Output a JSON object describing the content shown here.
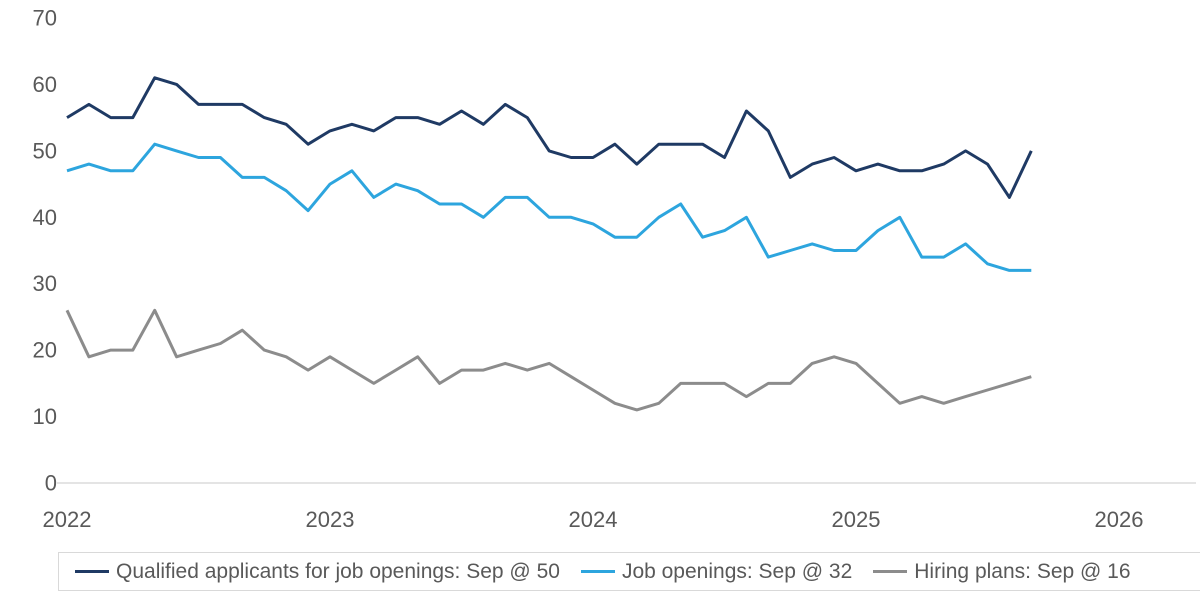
{
  "chart_data": {
    "type": "line",
    "title": "",
    "xlabel": "",
    "ylabel": "",
    "x_unit": "monthly",
    "x_range_note": "Jan 2022 through Sep 2025",
    "x_tick_labels": [
      "2022",
      "2023",
      "2024",
      "2025",
      "2026"
    ],
    "ylim": [
      0,
      70
    ],
    "y_ticks": [
      0,
      10,
      20,
      30,
      40,
      50,
      60,
      70
    ],
    "grid": "baseline only",
    "legend_position": "bottom",
    "series": [
      {
        "name": "Qualified applicants for job openings: Sep @ 50",
        "color": "#1f3a64",
        "last_point": {
          "month": "Sep",
          "value": 50
        },
        "values": [
          55,
          57,
          55,
          55,
          61,
          60,
          57,
          57,
          57,
          55,
          54,
          51,
          53,
          54,
          53,
          55,
          55,
          54,
          56,
          54,
          57,
          55,
          50,
          49,
          49,
          51,
          48,
          51,
          51,
          51,
          49,
          56,
          53,
          46,
          48,
          49,
          47,
          48,
          47,
          47,
          48,
          50,
          48,
          43,
          50
        ]
      },
      {
        "name": "Job openings: Sep @ 32",
        "color": "#2da5de",
        "last_point": {
          "month": "Sep",
          "value": 32
        },
        "values": [
          47,
          48,
          47,
          47,
          51,
          50,
          49,
          49,
          46,
          46,
          44,
          41,
          45,
          47,
          43,
          45,
          44,
          42,
          42,
          40,
          43,
          43,
          40,
          40,
          39,
          37,
          37,
          40,
          42,
          37,
          38,
          40,
          34,
          35,
          36,
          35,
          35,
          38,
          40,
          34,
          34,
          36,
          33,
          32,
          32
        ]
      },
      {
        "name": "Hiring plans: Sep @ 16",
        "color": "#8c8c8c",
        "last_point": {
          "month": "Sep",
          "value": 16
        },
        "values": [
          26,
          19,
          20,
          20,
          26,
          19,
          20,
          21,
          23,
          20,
          19,
          17,
          19,
          17,
          15,
          17,
          19,
          15,
          17,
          17,
          18,
          17,
          18,
          16,
          14,
          12,
          11,
          12,
          15,
          15,
          15,
          13,
          15,
          15,
          18,
          19,
          18,
          15,
          12,
          13,
          12,
          13,
          14,
          15,
          16
        ]
      }
    ],
    "style": {
      "tick_label_color": "#595959",
      "baseline_color": "#dcdcdc",
      "line_width": 3
    }
  }
}
